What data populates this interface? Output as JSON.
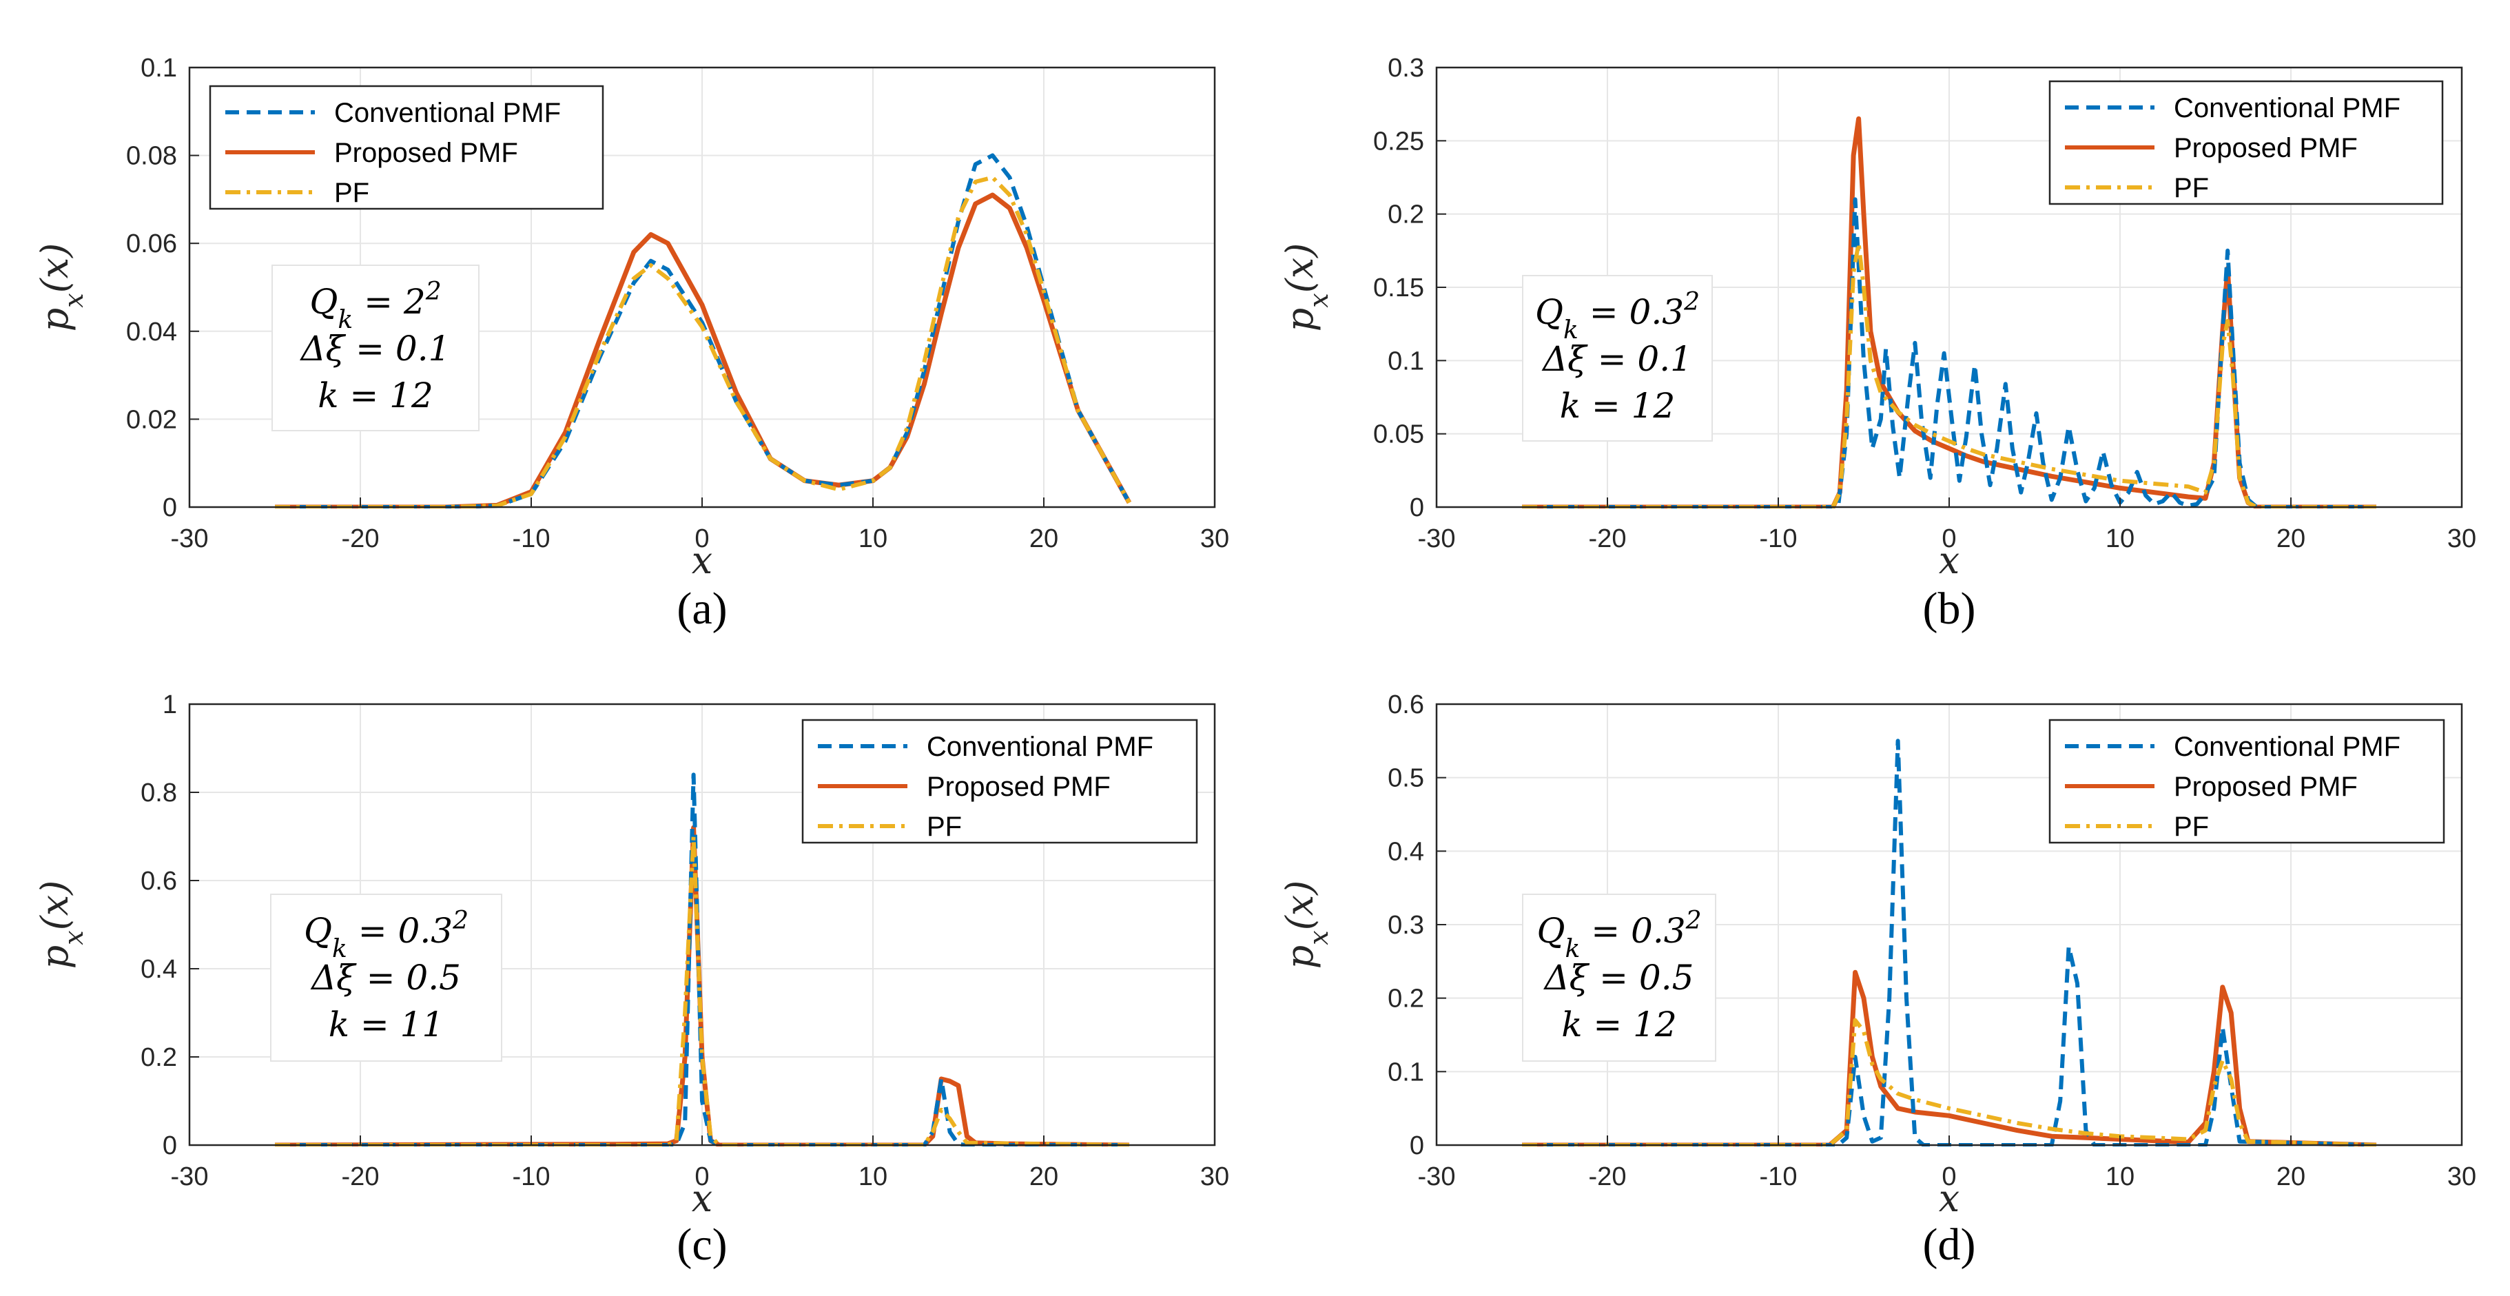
{
  "colors": {
    "conventional": "#0072BD",
    "proposed": "#D95319",
    "pf": "#EDB120"
  },
  "legend_labels": [
    "Conventional PMF",
    "Proposed PMF",
    "PF"
  ],
  "chart_data": [
    {
      "id": "a",
      "type": "line",
      "caption": "(a)",
      "xlabel": "x",
      "ylabel": "p_x(x)",
      "xlim": [
        -30,
        30
      ],
      "ylim": [
        0,
        0.1
      ],
      "xticks": [
        -30,
        -20,
        -10,
        0,
        10,
        20,
        30
      ],
      "xtick_labels": [
        "-30",
        "-20",
        "-10",
        "0",
        "10",
        "20",
        "30"
      ],
      "yticks": [
        0,
        0.02,
        0.04,
        0.06,
        0.08,
        0.1
      ],
      "ytick_labels": [
        "0",
        "0.02",
        "0.04",
        "0.06",
        "0.08",
        "0.1"
      ],
      "legend_position": "top-left",
      "annotation": {
        "lines": [
          "Q_k = 2^2",
          "Δξ = 0.1",
          "k = 12"
        ],
        "position": "left"
      },
      "series": [
        {
          "name": "Conventional PMF",
          "style": "dashed",
          "x": [
            -25,
            -15,
            -12,
            -10,
            -8,
            -6,
            -4,
            -3,
            -2,
            0,
            2,
            4,
            6,
            8,
            10,
            11,
            12,
            13,
            14,
            15,
            16,
            17,
            18,
            19,
            20,
            22,
            25
          ],
          "y": [
            0,
            0,
            0.0003,
            0.003,
            0.015,
            0.034,
            0.051,
            0.056,
            0.054,
            0.042,
            0.024,
            0.011,
            0.006,
            0.005,
            0.006,
            0.009,
            0.017,
            0.031,
            0.048,
            0.065,
            0.078,
            0.08,
            0.075,
            0.064,
            0.05,
            0.022,
            0.001
          ]
        },
        {
          "name": "Proposed PMF",
          "style": "solid",
          "x": [
            -25,
            -15,
            -12,
            -10,
            -8,
            -6,
            -4,
            -3,
            -2,
            0,
            2,
            4,
            6,
            8,
            10,
            11,
            12,
            13,
            14,
            15,
            16,
            17,
            18,
            19,
            20,
            22,
            25
          ],
          "y": [
            0,
            0,
            0.0004,
            0.0035,
            0.017,
            0.038,
            0.058,
            0.062,
            0.06,
            0.046,
            0.026,
            0.011,
            0.006,
            0.005,
            0.006,
            0.009,
            0.016,
            0.028,
            0.044,
            0.059,
            0.069,
            0.071,
            0.068,
            0.059,
            0.047,
            0.022,
            0.001
          ]
        },
        {
          "name": "PF",
          "style": "dashdot",
          "x": [
            -25,
            -15,
            -12,
            -10,
            -8,
            -6,
            -4,
            -3,
            -2,
            0,
            2,
            4,
            6,
            8,
            10,
            11,
            12,
            13,
            14,
            15,
            16,
            17,
            18,
            19,
            20,
            22,
            25
          ],
          "y": [
            0,
            0,
            0.0003,
            0.003,
            0.016,
            0.035,
            0.052,
            0.055,
            0.052,
            0.041,
            0.024,
            0.011,
            0.006,
            0.004,
            0.006,
            0.009,
            0.018,
            0.033,
            0.05,
            0.066,
            0.074,
            0.075,
            0.071,
            0.062,
            0.049,
            0.022,
            0.001
          ]
        }
      ]
    },
    {
      "id": "b",
      "type": "line",
      "caption": "(b)",
      "xlabel": "x",
      "ylabel": "p_x(x)",
      "xlim": [
        -30,
        30
      ],
      "ylim": [
        0,
        0.3
      ],
      "xticks": [
        -30,
        -20,
        -10,
        0,
        10,
        20,
        30
      ],
      "xtick_labels": [
        "-30",
        "-20",
        "-10",
        "0",
        "10",
        "20",
        "30"
      ],
      "yticks": [
        0,
        0.05,
        0.1,
        0.15,
        0.2,
        0.25,
        0.3
      ],
      "ytick_labels": [
        "0",
        "0.05",
        "0.1",
        "0.15",
        "0.2",
        "0.25",
        "0.3"
      ],
      "legend_position": "top-right",
      "annotation": {
        "lines": [
          "Q_k = 0.3^2",
          "Δξ = 0.1",
          "k = 12"
        ],
        "position": "left"
      },
      "series": [
        {
          "name": "Conventional PMF",
          "style": "dashed",
          "x": [
            -25,
            -6.5,
            -6,
            -5.5,
            -5,
            -4.5,
            -4,
            -3.7,
            -3.3,
            -2.9,
            -2.4,
            -2,
            -1.6,
            -1.1,
            -0.7,
            -0.3,
            0.2,
            0.6,
            1,
            1.5,
            1.9,
            2.4,
            2.8,
            3.3,
            3.7,
            4.2,
            4.6,
            5.1,
            5.5,
            6,
            6.5,
            7,
            7.5,
            8,
            8.5,
            9,
            9.5,
            10,
            10.5,
            11,
            11.5,
            12,
            12.5,
            13,
            13.5,
            14,
            14.5,
            15,
            15.5,
            16,
            16.3,
            16.6,
            17,
            17.5,
            18,
            25
          ],
          "y": [
            0,
            0,
            0.05,
            0.21,
            0.1,
            0.04,
            0.06,
            0.108,
            0.055,
            0.02,
            0.075,
            0.112,
            0.058,
            0.02,
            0.07,
            0.105,
            0.055,
            0.018,
            0.048,
            0.097,
            0.05,
            0.015,
            0.04,
            0.084,
            0.04,
            0.01,
            0.03,
            0.064,
            0.03,
            0.005,
            0.02,
            0.055,
            0.025,
            0.004,
            0.013,
            0.038,
            0.015,
            0.003,
            0.01,
            0.024,
            0.008,
            0.002,
            0.004,
            0.01,
            0.003,
            0.001,
            0.002,
            0.009,
            0.02,
            0.12,
            0.175,
            0.11,
            0.03,
            0.005,
            0,
            0
          ]
        },
        {
          "name": "Proposed PMF",
          "style": "solid",
          "x": [
            -25,
            -6.8,
            -6.4,
            -6,
            -5.6,
            -5.3,
            -5,
            -4.6,
            -4,
            -3,
            -2,
            -1,
            0,
            1,
            2,
            4,
            6,
            8,
            10,
            12,
            14,
            15,
            15.5,
            16,
            16.3,
            16.6,
            17,
            17.5,
            18,
            25
          ],
          "y": [
            0,
            0,
            0.01,
            0.08,
            0.24,
            0.265,
            0.2,
            0.12,
            0.085,
            0.065,
            0.052,
            0.045,
            0.04,
            0.035,
            0.031,
            0.026,
            0.021,
            0.017,
            0.013,
            0.01,
            0.007,
            0.006,
            0.03,
            0.12,
            0.163,
            0.1,
            0.02,
            0.003,
            0,
            0
          ]
        },
        {
          "name": "PF",
          "style": "dashdot",
          "x": [
            -25,
            -6.8,
            -6.4,
            -6,
            -5.6,
            -5.3,
            -5,
            -4.6,
            -4,
            -3,
            -2,
            -1,
            0,
            1,
            2,
            4,
            6,
            8,
            10,
            12,
            14,
            15,
            15.5,
            16,
            16.3,
            16.6,
            17,
            17.5,
            18,
            25
          ],
          "y": [
            0,
            0,
            0.01,
            0.06,
            0.16,
            0.18,
            0.15,
            0.1,
            0.078,
            0.065,
            0.056,
            0.05,
            0.045,
            0.04,
            0.036,
            0.031,
            0.026,
            0.022,
            0.018,
            0.016,
            0.014,
            0.01,
            0.03,
            0.11,
            0.127,
            0.09,
            0.02,
            0.003,
            0,
            0
          ]
        }
      ]
    },
    {
      "id": "c",
      "type": "line",
      "caption": "(c)",
      "xlabel": "x",
      "ylabel": "p_x(x)",
      "xlim": [
        -30,
        30
      ],
      "ylim": [
        0,
        1
      ],
      "xticks": [
        -30,
        -20,
        -10,
        0,
        10,
        20,
        30
      ],
      "xtick_labels": [
        "-30",
        "-20",
        "-10",
        "0",
        "10",
        "20",
        "30"
      ],
      "yticks": [
        0,
        0.2,
        0.4,
        0.6,
        0.8,
        1
      ],
      "ytick_labels": [
        "0",
        "0.2",
        "0.4",
        "0.6",
        "0.8",
        "1"
      ],
      "legend_position": "top-right",
      "annotation": {
        "lines": [
          "Q_k = 0.3^2",
          "Δξ = 0.5",
          "k = 11"
        ],
        "position": "left"
      },
      "series": [
        {
          "name": "Conventional PMF",
          "style": "dashed",
          "x": [
            -25,
            -2,
            -1.5,
            -1,
            -0.5,
            0,
            0.5,
            1,
            1.5,
            13,
            13.5,
            14,
            14.5,
            15,
            15.5,
            25
          ],
          "y": [
            0,
            0,
            0.002,
            0.05,
            0.84,
            0.1,
            0.01,
            0,
            0,
            0,
            0.03,
            0.15,
            0.03,
            0.002,
            0,
            0
          ]
        },
        {
          "name": "Proposed PMF",
          "style": "solid",
          "x": [
            -25,
            -5,
            -2,
            -1.5,
            -1,
            -0.5,
            0,
            0.5,
            1,
            13,
            13.5,
            14,
            14.5,
            15,
            15.5,
            16,
            18,
            25
          ],
          "y": [
            0,
            0.002,
            0.003,
            0.01,
            0.2,
            0.72,
            0.2,
            0.01,
            0,
            0,
            0.02,
            0.15,
            0.145,
            0.135,
            0.02,
            0.005,
            0.003,
            0
          ]
        },
        {
          "name": "PF",
          "style": "dashdot",
          "x": [
            -25,
            -2,
            -1.5,
            -1,
            -0.5,
            0,
            0.5,
            1,
            13,
            13.5,
            14,
            14.5,
            15,
            15.5,
            25
          ],
          "y": [
            0,
            0,
            0.01,
            0.3,
            0.7,
            0.2,
            0.02,
            0,
            0,
            0.03,
            0.08,
            0.06,
            0.03,
            0.005,
            0
          ]
        }
      ]
    },
    {
      "id": "d",
      "type": "line",
      "caption": "(d)",
      "xlabel": "x",
      "ylabel": "p_x(x)",
      "xlim": [
        -30,
        30
      ],
      "ylim": [
        0,
        0.6
      ],
      "xticks": [
        -30,
        -20,
        -10,
        0,
        10,
        20,
        30
      ],
      "xtick_labels": [
        "-30",
        "-20",
        "-10",
        "0",
        "10",
        "20",
        "30"
      ],
      "yticks": [
        0,
        0.1,
        0.2,
        0.3,
        0.4,
        0.5,
        0.6
      ],
      "ytick_labels": [
        "0",
        "0.1",
        "0.2",
        "0.3",
        "0.4",
        "0.5",
        "0.6"
      ],
      "legend_position": "top-right",
      "annotation": {
        "lines": [
          "Q_k = 0.3^2",
          "Δξ = 0.5",
          "k = 12"
        ],
        "position": "left"
      },
      "series": [
        {
          "name": "Conventional PMF",
          "style": "dashed",
          "x": [
            -25,
            -6.5,
            -6,
            -5.5,
            -5,
            -4.5,
            -4,
            -3.5,
            -3,
            -2.5,
            -2,
            -1.5,
            6,
            6.5,
            7,
            7.5,
            8,
            8.5,
            15,
            15.5,
            16,
            16.5,
            17,
            25
          ],
          "y": [
            0,
            0,
            0.01,
            0.12,
            0.04,
            0.005,
            0.01,
            0.2,
            0.55,
            0.2,
            0.01,
            0,
            0,
            0.06,
            0.27,
            0.22,
            0.02,
            0,
            0,
            0.05,
            0.16,
            0.08,
            0.005,
            0
          ]
        },
        {
          "name": "Proposed PMF",
          "style": "solid",
          "x": [
            -25,
            -7,
            -6,
            -5.5,
            -5,
            -4.5,
            -4,
            -3,
            -2,
            0,
            2,
            4,
            6,
            8,
            10,
            12,
            14,
            15,
            15.5,
            16,
            16.5,
            17,
            17.5,
            25
          ],
          "y": [
            0,
            0,
            0.02,
            0.235,
            0.2,
            0.12,
            0.08,
            0.05,
            0.045,
            0.04,
            0.03,
            0.02,
            0.012,
            0.01,
            0.008,
            0.006,
            0.004,
            0.03,
            0.1,
            0.215,
            0.18,
            0.05,
            0.005,
            0
          ]
        },
        {
          "name": "PF",
          "style": "dashdot",
          "x": [
            -25,
            -7,
            -6,
            -5.5,
            -5,
            -4.5,
            -4,
            -3,
            -2,
            0,
            2,
            4,
            6,
            8,
            10,
            12,
            14,
            15,
            15.5,
            16,
            16.5,
            17,
            17.5,
            25
          ],
          "y": [
            0,
            0,
            0.02,
            0.17,
            0.155,
            0.11,
            0.09,
            0.07,
            0.062,
            0.05,
            0.04,
            0.03,
            0.022,
            0.016,
            0.012,
            0.01,
            0.008,
            0.02,
            0.08,
            0.115,
            0.09,
            0.03,
            0.005,
            0
          ]
        }
      ]
    }
  ]
}
